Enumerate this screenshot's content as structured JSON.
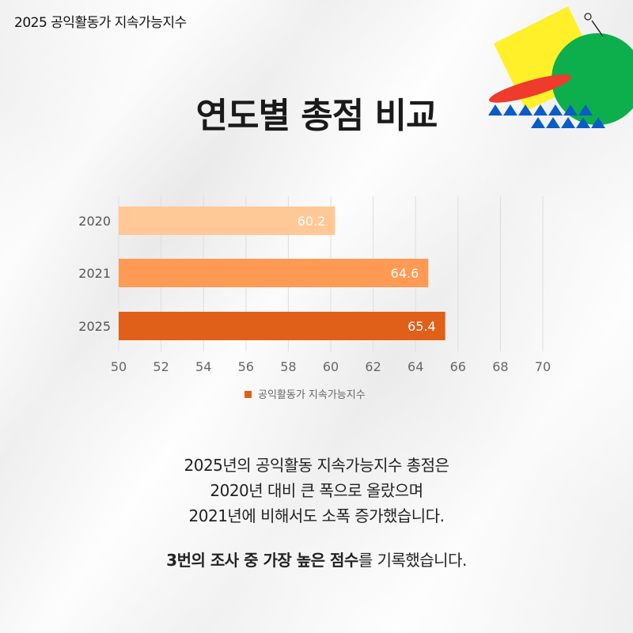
{
  "header": {
    "title": "2025 공익활동가 지속가능지수"
  },
  "main_title": "연도별 총점 비교",
  "chart_data": {
    "type": "bar",
    "orientation": "horizontal",
    "categories": [
      "2020",
      "2021",
      "2025"
    ],
    "series": [
      {
        "name": "공익활동가 지속가능지수",
        "values": [
          60.2,
          64.6,
          65.4
        ]
      }
    ],
    "bar_colors": [
      "#FFC896",
      "#FF9A55",
      "#E0601A"
    ],
    "value_labels": [
      "60.2",
      "64.6",
      "65.4"
    ],
    "xlim": [
      50,
      70
    ],
    "x_ticks": [
      "50",
      "52",
      "54",
      "56",
      "58",
      "60",
      "62",
      "64",
      "66",
      "68",
      "70"
    ],
    "grid": true,
    "legend_position": "bottom"
  },
  "body": {
    "line1": "2025년의 공익활동 지속가능지수 총점은",
    "line2": "2020년 대비 큰 폭으로 올랐으며",
    "line3": "2021년에 비해서도 소폭 증가했습니다.",
    "line4_bold": "3번의 조사 중 가장 높은 점수",
    "line4_rest": "를 기록했습니다."
  },
  "colors": {
    "accent_dark": "#E0601A",
    "deco_yellow": "#FFF02A",
    "deco_green": "#0CAF4B",
    "deco_red": "#EE3B2B",
    "deco_blue": "#0A5CC7"
  }
}
